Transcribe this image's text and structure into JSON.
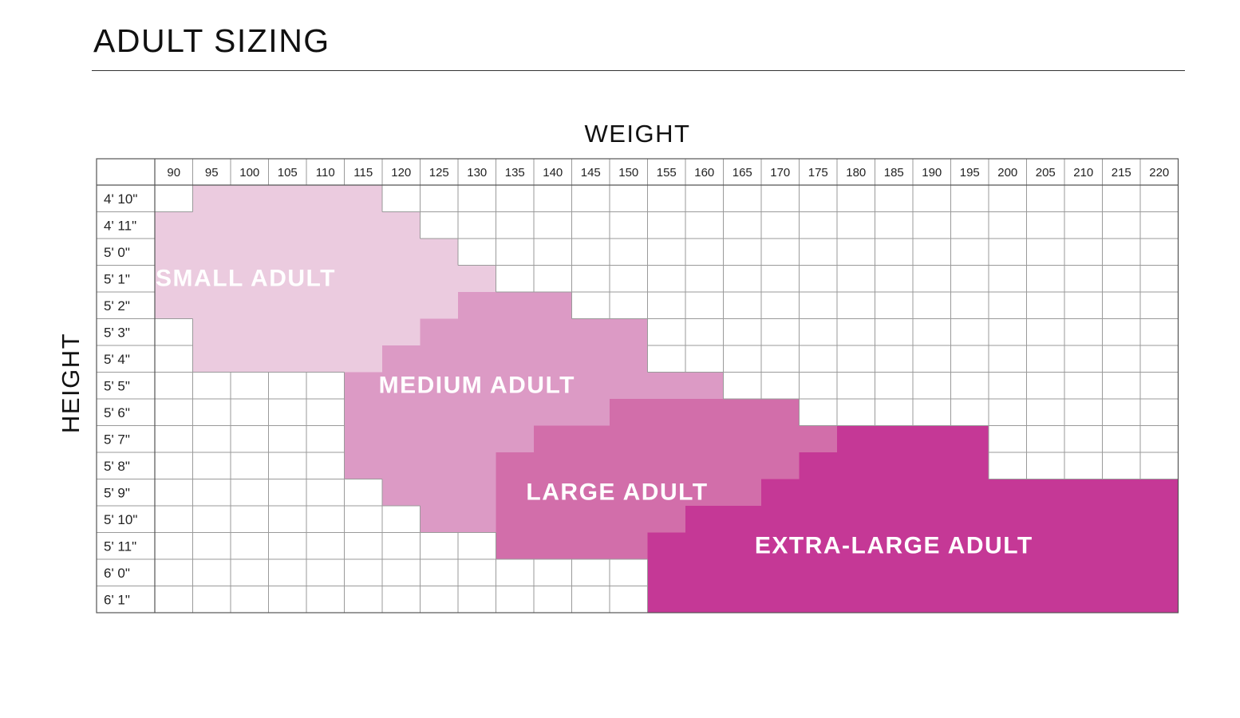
{
  "page": {
    "title": "ADULT SIZING"
  },
  "chart_data": {
    "type": "heatmap",
    "title": "ADULT SIZING",
    "xlabel": "WEIGHT",
    "ylabel": "HEIGHT",
    "weights": [
      "90",
      "95",
      "100",
      "105",
      "110",
      "115",
      "120",
      "125",
      "130",
      "135",
      "140",
      "145",
      "150",
      "155",
      "160",
      "165",
      "170",
      "175",
      "180",
      "185",
      "190",
      "195",
      "200",
      "205",
      "210",
      "215",
      "220"
    ],
    "heights": [
      "4' 10\"",
      "4' 11\"",
      "5' 0\"",
      "5' 1\"",
      "5' 2\"",
      "5' 3\"",
      "5' 4\"",
      "5' 5\"",
      "5' 6\"",
      "5' 7\"",
      "5' 8\"",
      "5' 9\"",
      "5' 10\"",
      "5' 11\"",
      "6' 0\"",
      "6' 1\""
    ],
    "sizes": [
      {
        "name": "SMALL ADULT",
        "color": "#ebcbdf",
        "ranges": [
          {
            "height": "4' 10\"",
            "from": "95",
            "to": "115"
          },
          {
            "height": "4' 11\"",
            "from": "90",
            "to": "120"
          },
          {
            "height": "5' 0\"",
            "from": "90",
            "to": "125"
          },
          {
            "height": "5' 1\"",
            "from": "90",
            "to": "130"
          },
          {
            "height": "5' 2\"",
            "from": "90",
            "to": "125"
          },
          {
            "height": "5' 3\"",
            "from": "95",
            "to": "120"
          },
          {
            "height": "5' 4\"",
            "from": "95",
            "to": "115"
          }
        ]
      },
      {
        "name": "MEDIUM ADULT",
        "color": "#dc9ac5",
        "ranges": [
          {
            "height": "5' 2\"",
            "from": "130",
            "to": "140"
          },
          {
            "height": "5' 3\"",
            "from": "125",
            "to": "150"
          },
          {
            "height": "5' 4\"",
            "from": "120",
            "to": "150"
          },
          {
            "height": "5' 5\"",
            "from": "115",
            "to": "160"
          },
          {
            "height": "5' 6\"",
            "from": "115",
            "to": "145"
          },
          {
            "height": "5' 7\"",
            "from": "115",
            "to": "135"
          },
          {
            "height": "5' 8\"",
            "from": "115",
            "to": "130"
          },
          {
            "height": "5' 9\"",
            "from": "120",
            "to": "130"
          },
          {
            "height": "5' 10\"",
            "from": "125",
            "to": "130"
          }
        ]
      },
      {
        "name": "LARGE ADULT",
        "color": "#d26eaa",
        "ranges": [
          {
            "height": "5' 6\"",
            "from": "150",
            "to": "170"
          },
          {
            "height": "5' 7\"",
            "from": "140",
            "to": "175"
          },
          {
            "height": "5' 8\"",
            "from": "135",
            "to": "170"
          },
          {
            "height": "5' 9\"",
            "from": "135",
            "to": "165"
          },
          {
            "height": "5' 10\"",
            "from": "135",
            "to": "155"
          },
          {
            "height": "5' 11\"",
            "from": "135",
            "to": "150"
          }
        ]
      },
      {
        "name": "EXTRA-LARGE ADULT",
        "color": "#c53896",
        "ranges": [
          {
            "height": "5' 7\"",
            "from": "180",
            "to": "195"
          },
          {
            "height": "5' 8\"",
            "from": "175",
            "to": "195"
          },
          {
            "height": "5' 9\"",
            "from": "170",
            "to": "220"
          },
          {
            "height": "5' 10\"",
            "from": "160",
            "to": "220"
          },
          {
            "height": "5' 11\"",
            "from": "155",
            "to": "220"
          },
          {
            "height": "6' 0\"",
            "from": "155",
            "to": "220"
          },
          {
            "height": "6' 1\"",
            "from": "155",
            "to": "220"
          }
        ]
      }
    ],
    "grid": true,
    "colors": {
      "grid": "#9a9a9a",
      "border": "#555555",
      "size_label": "#ffffff"
    }
  }
}
